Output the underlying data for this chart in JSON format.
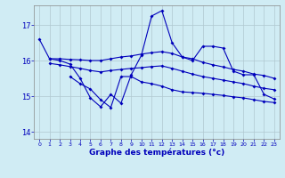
{
  "xlabel": "Graphe des températures (°c)",
  "bg_color": "#d0ecf4",
  "grid_color": "#b0c8d0",
  "line_color": "#0000bb",
  "ylim": [
    13.8,
    17.55
  ],
  "xlim": [
    -0.5,
    23.5
  ],
  "yticks": [
    14,
    15,
    16,
    17
  ],
  "xticks": [
    0,
    1,
    2,
    3,
    4,
    5,
    6,
    7,
    8,
    9,
    10,
    11,
    12,
    13,
    14,
    15,
    16,
    17,
    18,
    19,
    20,
    21,
    22,
    23
  ],
  "xtick_labels": [
    "0",
    "1",
    "2",
    "3",
    "4",
    "5",
    "6",
    "7",
    "8",
    "9",
    "10",
    "11",
    "12",
    "13",
    "14",
    "15",
    "16",
    "17",
    "18",
    "19",
    "20",
    "21",
    "22",
    "23"
  ],
  "line1_x": [
    0,
    1,
    2,
    3,
    4,
    5,
    6,
    7,
    8,
    9,
    10,
    11,
    12,
    13,
    14,
    15,
    16,
    17,
    18,
    19,
    20,
    21,
    22,
    23
  ],
  "line1_y": [
    16.6,
    16.05,
    16.0,
    15.9,
    15.5,
    14.95,
    14.7,
    15.05,
    14.8,
    15.6,
    16.15,
    17.25,
    17.4,
    16.5,
    16.1,
    16.0,
    16.4,
    16.4,
    16.35,
    15.7,
    15.6,
    15.6,
    15.05,
    14.92
  ],
  "line2_x": [
    1,
    2,
    3,
    4,
    5,
    6,
    7,
    8,
    9,
    10,
    11,
    12,
    13,
    14,
    15,
    16,
    17,
    18,
    19,
    20,
    21,
    22,
    23
  ],
  "line2_y": [
    16.05,
    16.05,
    16.03,
    16.02,
    16.0,
    16.0,
    16.05,
    16.1,
    16.13,
    16.18,
    16.22,
    16.25,
    16.2,
    16.1,
    16.05,
    15.95,
    15.88,
    15.82,
    15.75,
    15.7,
    15.62,
    15.58,
    15.5
  ],
  "line3_x": [
    1,
    2,
    3,
    4,
    5,
    6,
    7,
    8,
    9,
    10,
    11,
    12,
    13,
    14,
    15,
    16,
    17,
    18,
    19,
    20,
    21,
    22,
    23
  ],
  "line3_y": [
    15.92,
    15.88,
    15.83,
    15.78,
    15.72,
    15.68,
    15.72,
    15.75,
    15.78,
    15.8,
    15.83,
    15.85,
    15.78,
    15.7,
    15.62,
    15.55,
    15.5,
    15.45,
    15.4,
    15.35,
    15.28,
    15.22,
    15.18
  ],
  "line4_x": [
    3,
    4,
    5,
    6,
    7,
    8,
    9,
    10,
    11,
    12,
    13,
    14,
    15,
    16,
    17,
    18,
    19,
    20,
    21,
    22,
    23
  ],
  "line4_y": [
    15.55,
    15.35,
    15.2,
    14.9,
    14.68,
    15.55,
    15.55,
    15.4,
    15.35,
    15.28,
    15.18,
    15.12,
    15.1,
    15.08,
    15.05,
    15.02,
    14.98,
    14.95,
    14.9,
    14.85,
    14.82
  ]
}
